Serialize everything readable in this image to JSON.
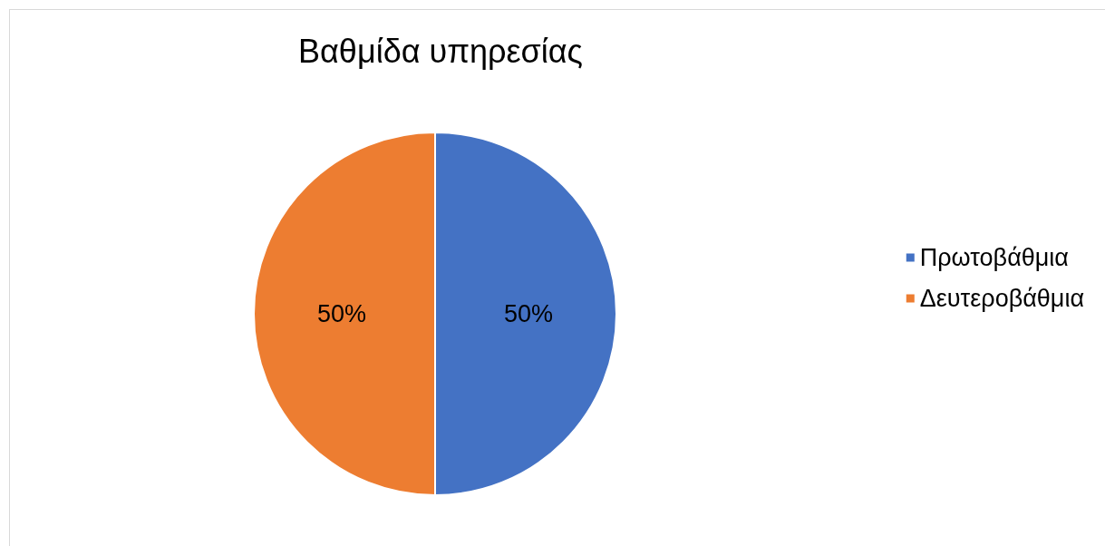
{
  "chart_data": {
    "type": "pie",
    "title": "Βαθμίδα υπηρεσίας",
    "categories": [
      "Πρωτοβάθμια",
      "Δευτεροβάθμια"
    ],
    "values": [
      50,
      50
    ],
    "colors": [
      "#4472c4",
      "#ed7d31"
    ],
    "value_labels": [
      "50%",
      "50%"
    ],
    "legend": "right"
  }
}
